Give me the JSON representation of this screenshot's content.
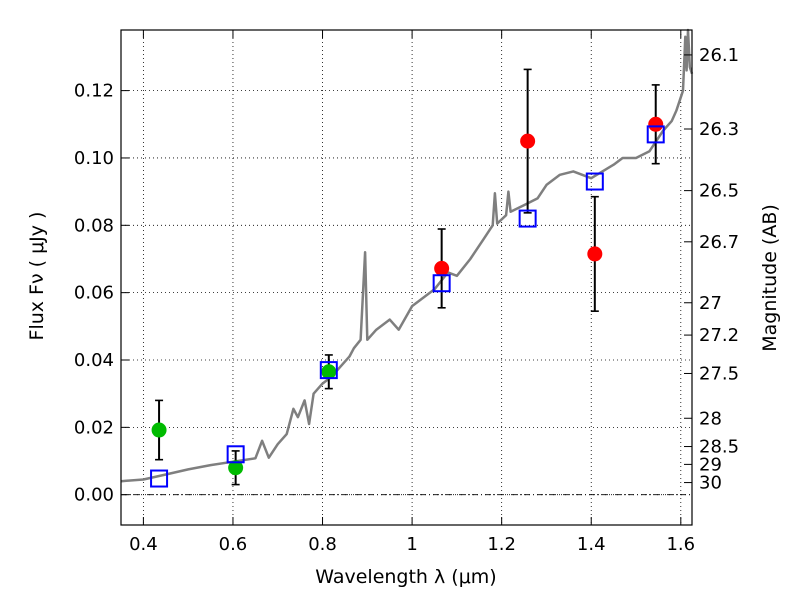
{
  "chart_data": {
    "type": "scatter",
    "title": "",
    "xlabel": "Wavelength  λ (μm)",
    "ylabel": "Flux  Fν  ( μJy )",
    "y2label": "Magnitude (AB)",
    "xlim": [
      0.35,
      1.625
    ],
    "ylim": [
      -0.009,
      0.138
    ],
    "grid": true,
    "x_ticks": [
      0.4,
      0.6,
      0.8,
      1.0,
      1.2,
      1.4,
      1.6
    ],
    "x_tick_labels": [
      "0.4",
      "0.6",
      "0.8",
      "1",
      "1.2",
      "1.4",
      "1.6"
    ],
    "y_ticks": [
      0.0,
      0.02,
      0.04,
      0.06,
      0.08,
      0.1,
      0.12
    ],
    "y_tick_labels": [
      "0.00",
      "0.02",
      "0.04",
      "0.06",
      "0.08",
      "0.10",
      "0.12"
    ],
    "mag_ticks": [
      {
        "label": "26.1",
        "flux": 0.1306
      },
      {
        "label": "26.3",
        "flux": 0.1086
      },
      {
        "label": "26.5",
        "flux": 0.0903
      },
      {
        "label": "26.7",
        "flux": 0.0751
      },
      {
        "label": "27",
        "flux": 0.057
      },
      {
        "label": "27.2",
        "flux": 0.0474
      },
      {
        "label": "27.5",
        "flux": 0.036
      },
      {
        "label": "28",
        "flux": 0.0227
      },
      {
        "label": "28.5",
        "flux": 0.0143
      },
      {
        "label": "29",
        "flux": 0.009
      },
      {
        "label": "30",
        "flux": 0.0036
      }
    ],
    "series": [
      {
        "marker": "circle",
        "color": "#00bb00",
        "points": [
          {
            "x": 0.435,
            "y": 0.0192,
            "err": 0.0088
          },
          {
            "x": 0.606,
            "y": 0.008,
            "err": 0.005
          },
          {
            "x": 0.814,
            "y": 0.0365,
            "err": 0.005
          }
        ]
      },
      {
        "marker": "circle",
        "color": "#ff0000",
        "points": [
          {
            "x": 1.066,
            "y": 0.0672,
            "err": 0.0117
          },
          {
            "x": 1.258,
            "y": 0.105,
            "err": 0.0213
          },
          {
            "x": 1.408,
            "y": 0.0715,
            "err": 0.017
          },
          {
            "x": 1.544,
            "y": 0.11,
            "err": 0.0117
          }
        ]
      },
      {
        "marker": "square-open",
        "color": "#0000ff",
        "points": [
          {
            "x": 0.435,
            "y": 0.0048
          },
          {
            "x": 0.606,
            "y": 0.012
          },
          {
            "x": 0.814,
            "y": 0.037
          },
          {
            "x": 1.066,
            "y": 0.0628
          },
          {
            "x": 1.258,
            "y": 0.082
          },
          {
            "x": 1.408,
            "y": 0.093
          },
          {
            "x": 1.544,
            "y": 0.107
          }
        ]
      },
      {
        "type": "line",
        "color": "#7f7f7f",
        "points": [
          [
            0.35,
            0.004
          ],
          [
            0.4,
            0.0045
          ],
          [
            0.45,
            0.006
          ],
          [
            0.5,
            0.0075
          ],
          [
            0.55,
            0.0088
          ],
          [
            0.6,
            0.0098
          ],
          [
            0.65,
            0.0108
          ],
          [
            0.665,
            0.016
          ],
          [
            0.68,
            0.011
          ],
          [
            0.7,
            0.015
          ],
          [
            0.72,
            0.018
          ],
          [
            0.73,
            0.023
          ],
          [
            0.735,
            0.0255
          ],
          [
            0.745,
            0.023
          ],
          [
            0.76,
            0.028
          ],
          [
            0.77,
            0.021
          ],
          [
            0.78,
            0.03
          ],
          [
            0.8,
            0.033
          ],
          [
            0.82,
            0.035
          ],
          [
            0.84,
            0.038
          ],
          [
            0.86,
            0.041
          ],
          [
            0.87,
            0.0435
          ],
          [
            0.885,
            0.046
          ],
          [
            0.895,
            0.072
          ],
          [
            0.9,
            0.046
          ],
          [
            0.92,
            0.049
          ],
          [
            0.95,
            0.052
          ],
          [
            0.97,
            0.049
          ],
          [
            1.0,
            0.056
          ],
          [
            1.05,
            0.061
          ],
          [
            1.08,
            0.066
          ],
          [
            1.1,
            0.065
          ],
          [
            1.13,
            0.07
          ],
          [
            1.16,
            0.076
          ],
          [
            1.18,
            0.08
          ],
          [
            1.185,
            0.0895
          ],
          [
            1.19,
            0.0805
          ],
          [
            1.21,
            0.083
          ],
          [
            1.215,
            0.09
          ],
          [
            1.22,
            0.084
          ],
          [
            1.25,
            0.086
          ],
          [
            1.28,
            0.088
          ],
          [
            1.3,
            0.092
          ],
          [
            1.33,
            0.095
          ],
          [
            1.36,
            0.096
          ],
          [
            1.4,
            0.094
          ],
          [
            1.45,
            0.098
          ],
          [
            1.47,
            0.1
          ],
          [
            1.5,
            0.1
          ],
          [
            1.53,
            0.102
          ],
          [
            1.56,
            0.108
          ],
          [
            1.58,
            0.111
          ],
          [
            1.59,
            0.114
          ],
          [
            1.6,
            0.118
          ],
          [
            1.605,
            0.12
          ],
          [
            1.61,
            0.136
          ],
          [
            1.613,
            0.126
          ],
          [
            1.616,
            0.138
          ],
          [
            1.62,
            0.127
          ],
          [
            1.625,
            0.125
          ]
        ]
      }
    ]
  }
}
